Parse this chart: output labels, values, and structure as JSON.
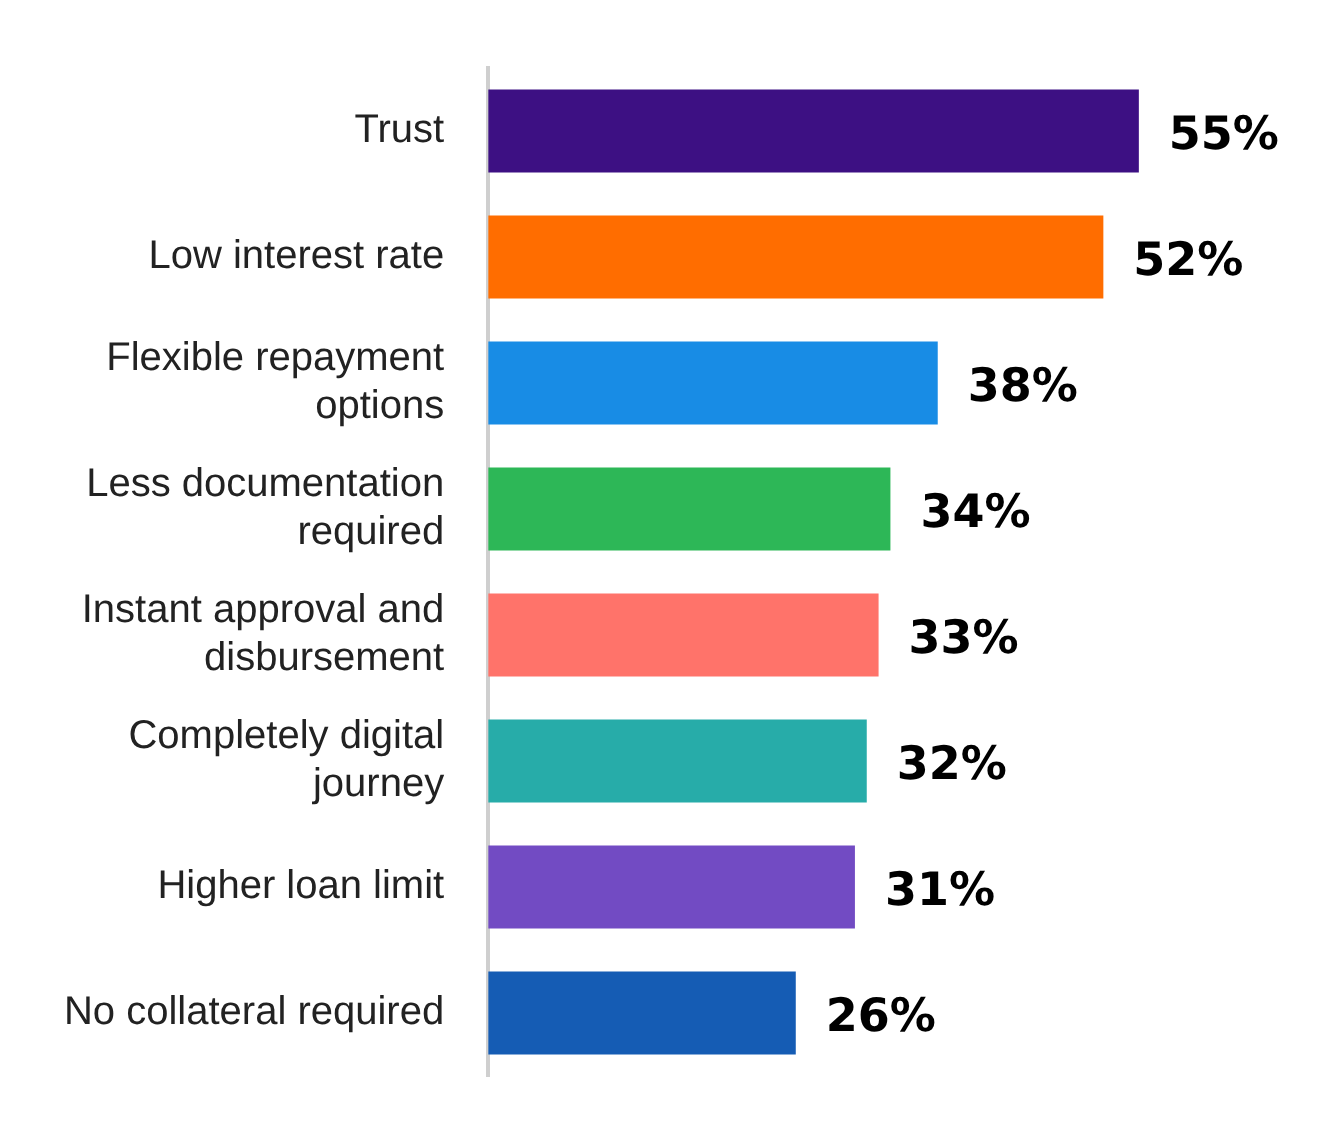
{
  "chart_data": {
    "type": "bar",
    "orientation": "horizontal",
    "categories": [
      "Trust",
      "Low interest rate",
      "Flexible repayment options",
      "Less documentation required",
      "Instant approval and disbursement",
      "Completely digital journey",
      "Higher loan limit",
      "No collateral required"
    ],
    "values": [
      55,
      52,
      38,
      34,
      33,
      32,
      31,
      26
    ],
    "colors": [
      "#3d1083",
      "#ff6d00",
      "#188ce5",
      "#2db757",
      "#ff736a",
      "#27aca9",
      "#724bc3",
      "#155cb4"
    ],
    "value_labels": [
      "55%",
      "52%",
      "38%",
      "34%",
      "33%",
      "32%",
      "31%",
      "26%"
    ],
    "legend": false
  }
}
